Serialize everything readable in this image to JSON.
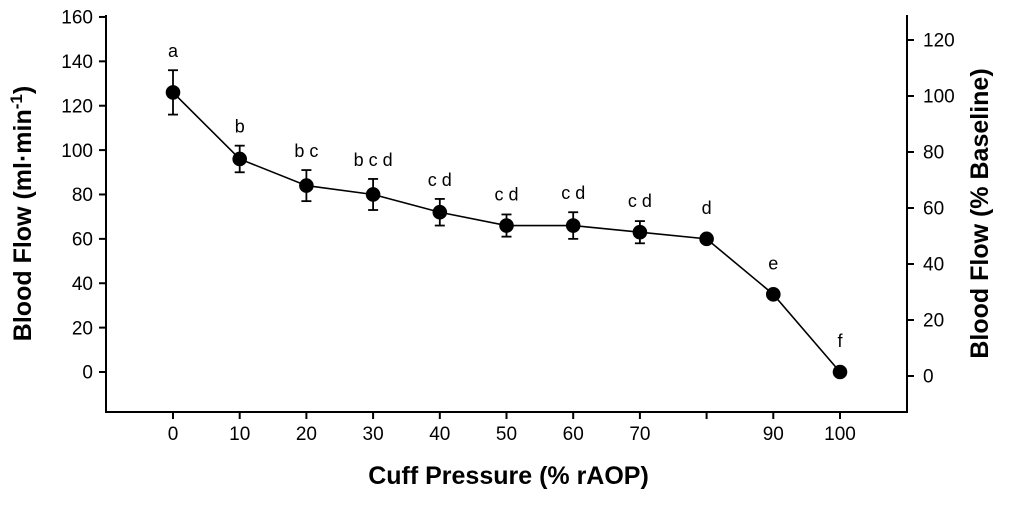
{
  "figure": {
    "background": "#ffffff",
    "ink_color": "#000000",
    "title": ""
  },
  "chart_data": {
    "type": "line",
    "title": "",
    "xlabel": "Cuff Pressure (% rAOP)",
    "ylabel_left": "Blood Flow (ml·min⁻¹)",
    "ylabel_right": "Blood Flow (% Baseline)",
    "x": [
      0,
      10,
      20,
      30,
      40,
      50,
      60,
      70,
      80,
      90,
      100
    ],
    "x_tick_labels": [
      "0",
      "10",
      "20",
      "30",
      "40",
      "50",
      "60",
      "70",
      "",
      "90",
      "100"
    ],
    "y_left_ticks": [
      0,
      20,
      40,
      60,
      80,
      100,
      120,
      140,
      160
    ],
    "y_right_ticks": [
      0,
      20,
      40,
      60,
      80,
      100,
      120
    ],
    "axes": {
      "x": {
        "min": 0,
        "max": 100,
        "grid": false
      },
      "y_left": {
        "min": 0,
        "max": 160
      },
      "y_right": {
        "min": 0,
        "max": 120
      }
    },
    "legend": "none",
    "series": [
      {
        "name": "Blood Flow",
        "marker": "filled-circle",
        "color": "#000000",
        "values_ml_min": [
          126,
          96,
          84,
          80,
          72,
          66,
          66,
          63,
          60,
          35,
          0
        ],
        "values_pct_baseline": [
          101,
          77,
          67,
          64,
          58,
          53,
          53,
          51,
          48,
          28,
          0
        ],
        "errors_ml_min": [
          10,
          6,
          7,
          7,
          6,
          5,
          6,
          5,
          4,
          2,
          0
        ],
        "significance_labels": [
          "a",
          "b",
          "b c",
          "b c d",
          "c d",
          "c d",
          "c d",
          "c d",
          "d",
          "e",
          "f"
        ]
      }
    ]
  }
}
